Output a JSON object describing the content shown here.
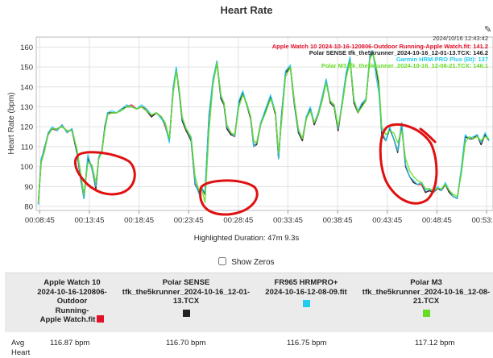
{
  "title": "Heart Rate",
  "timestamp": "2024/10/16 12:43:42",
  "legend": [
    {
      "label": "Apple Watch 10 2024-10-16-120806-Outdoor Running-Apple Watch.fit: 141.2",
      "color": "#e5102a"
    },
    {
      "label": "Polar SENSE tfk_the5krunner_2024-10-16_12-01-13.TCX: 146.2",
      "color": "#222222"
    },
    {
      "label": "Garmin HRM-PRO Plus (Bt): 137",
      "color": "#22ccee"
    },
    {
      "label": "Polar M3 tfk_the5krunner_2024-10-16_12-08-21.TCX: 146.1",
      "color": "#66dd22"
    }
  ],
  "highlighted_duration": "Highlighted Duration: 47m 9.3s",
  "show_zeros_label": "Show Zeros",
  "table": {
    "columns": [
      {
        "lines": [
          "Apple Watch 10",
          "2024-10-16-120806-",
          "Outdoor",
          "Running-",
          "Apple Watch.fit"
        ],
        "color": "#e5102a"
      },
      {
        "lines": [
          "Polar SENSE",
          "tfk_the5krunner_2024-10-16_12-01-13.TCX"
        ],
        "color": "#222222"
      },
      {
        "lines": [
          "FR965 HRMPRO+",
          "2024-10-16-12-08-09.fit"
        ],
        "color": "#22ccee"
      },
      {
        "lines": [
          "Polar M3",
          "tfk_the5krunner_2024-10-16_12-08-21.TCX"
        ],
        "color": "#66dd22"
      }
    ],
    "row_label": "Avg Heart",
    "avg": [
      "116.87 bpm",
      "116.70 bpm",
      "116.75 bpm",
      "117.12 bpm"
    ]
  },
  "chart_data": {
    "type": "line",
    "ylabel": "Heart Rate (bpm)",
    "ylim": [
      78,
      165
    ],
    "y_ticks": [
      80,
      90,
      100,
      110,
      120,
      130,
      140,
      150,
      160
    ],
    "x_ticks": [
      "00:08:45",
      "00:13:45",
      "00:18:45",
      "00:23:45",
      "00:28:45",
      "00:33:45",
      "00:38:45",
      "00:43:45",
      "00:48:45",
      "00:53:45"
    ],
    "x_tick_minutes": [
      8.75,
      13.75,
      18.75,
      23.75,
      28.75,
      33.75,
      38.75,
      43.75,
      48.75,
      53.75
    ],
    "xlim_minutes": [
      8.4,
      54.4
    ],
    "grid": true,
    "legend_position": "top-right",
    "x_minutes": [
      8.6,
      8.9,
      9.2,
      9.6,
      10.0,
      10.5,
      11.0,
      11.5,
      12.0,
      12.5,
      12.9,
      13.2,
      13.6,
      14.0,
      14.4,
      14.7,
      15.0,
      15.3,
      15.6,
      16.0,
      16.5,
      17.0,
      17.5,
      18.0,
      18.5,
      19.0,
      19.5,
      20.0,
      20.5,
      21.0,
      21.4,
      21.8,
      22.2,
      22.5,
      22.8,
      23.1,
      23.5,
      24.0,
      24.4,
      24.8,
      25.1,
      25.4,
      25.8,
      26.2,
      26.6,
      27.0,
      27.3,
      27.6,
      28.0,
      28.4,
      28.8,
      29.2,
      29.6,
      30.0,
      30.3,
      30.6,
      31.0,
      31.5,
      32.0,
      32.5,
      32.8,
      33.1,
      33.5,
      34.0,
      34.4,
      34.8,
      35.2,
      35.6,
      36.0,
      36.4,
      36.8,
      37.2,
      37.6,
      38.0,
      38.4,
      38.8,
      39.2,
      39.6,
      40.0,
      40.4,
      40.8,
      41.2,
      41.6,
      42.0,
      42.3,
      42.6,
      42.9,
      43.2,
      43.6,
      44.0,
      44.4,
      44.8,
      45.2,
      45.6,
      46.0,
      46.4,
      46.8,
      47.2,
      47.6,
      48.0,
      48.4,
      48.8,
      49.2,
      49.6,
      50.0,
      50.4,
      50.8,
      51.2,
      51.6,
      52.0,
      52.4,
      52.8,
      53.2,
      53.6,
      54.0
    ],
    "series": [
      {
        "name": "Apple Watch 10 2024-10-16-120806-Outdoor Running-Apple Watch.fit",
        "color": "#e5102a",
        "values": [
          82,
          104,
          108,
          117,
          119,
          118,
          121,
          117,
          119,
          107,
          93,
          85,
          105,
          99,
          89,
          105,
          108,
          119,
          127,
          127,
          127,
          129,
          130,
          131,
          129,
          130,
          129,
          125,
          127,
          125,
          120,
          113,
          140,
          149,
          138,
          123,
          118,
          114,
          92,
          87,
          89,
          87,
          125,
          143,
          153,
          134,
          132,
          119,
          116,
          115,
          132,
          137,
          131,
          124,
          110,
          111,
          122,
          128,
          135,
          126,
          104,
          125,
          147,
          150,
          131,
          118,
          113,
          124,
          129,
          121,
          127,
          135,
          143,
          133,
          131,
          118,
          132,
          146,
          154,
          132,
          127,
          131,
          133,
          155,
          157,
          150,
          141,
          117,
          113,
          119,
          114,
          108,
          122,
          100,
          95,
          92,
          91,
          91,
          87,
          88,
          87,
          89,
          88,
          91,
          87,
          85,
          84,
          98,
          115,
          114,
          114,
          116,
          111,
          116,
          113
        ]
      },
      {
        "name": "Polar SENSE tfk_the5krunner_2024-10-16_12-01-13.TCX",
        "color": "#222222",
        "values": [
          81,
          103,
          109,
          116,
          119,
          119,
          120,
          118,
          118,
          107,
          93,
          84,
          104,
          100,
          89,
          105,
          107,
          120,
          127,
          127,
          127,
          129,
          130,
          130,
          129,
          130,
          128,
          125,
          127,
          125,
          121,
          113,
          139,
          149,
          137,
          123,
          118,
          113,
          91,
          87,
          89,
          86,
          126,
          143,
          152,
          134,
          131,
          119,
          116,
          116,
          132,
          137,
          131,
          124,
          111,
          111,
          121,
          128,
          135,
          126,
          104,
          126,
          147,
          150,
          131,
          117,
          113,
          125,
          129,
          121,
          126,
          134,
          143,
          132,
          130,
          118,
          131,
          146,
          154,
          132,
          127,
          131,
          133,
          155,
          157,
          150,
          141,
          116,
          113,
          119,
          114,
          107,
          121,
          100,
          95,
          92,
          91,
          92,
          87,
          88,
          87,
          89,
          88,
          91,
          87,
          85,
          84,
          98,
          115,
          114,
          114,
          116,
          111,
          116,
          113
        ]
      },
      {
        "name": "Garmin HRM-PRO Plus (Bt)",
        "color": "#22ccee",
        "values": [
          81,
          104,
          108,
          117,
          120,
          118,
          121,
          117,
          119,
          108,
          94,
          84,
          106,
          99,
          90,
          105,
          108,
          119,
          127,
          128,
          127,
          129,
          131,
          130,
          129,
          131,
          129,
          126,
          127,
          124,
          121,
          112,
          140,
          150,
          138,
          124,
          119,
          114,
          92,
          86,
          89,
          87,
          126,
          144,
          153,
          135,
          132,
          120,
          117,
          115,
          133,
          138,
          131,
          125,
          110,
          112,
          122,
          129,
          136,
          127,
          104,
          125,
          148,
          151,
          132,
          118,
          114,
          125,
          130,
          122,
          127,
          135,
          144,
          133,
          131,
          119,
          132,
          147,
          155,
          133,
          128,
          132,
          134,
          156,
          158,
          146,
          137,
          118,
          113,
          120,
          114,
          108,
          122,
          101,
          95,
          93,
          91,
          92,
          88,
          89,
          87,
          90,
          88,
          92,
          88,
          85,
          84,
          99,
          116,
          114,
          115,
          116,
          112,
          117,
          113
        ]
      },
      {
        "name": "Polar M3 tfk_the5krunner_2024-10-16_12-08-21.TCX",
        "color": "#66dd22",
        "values": [
          82,
          102,
          107,
          116,
          119,
          119,
          120,
          118,
          118,
          109,
          96,
          86,
          102,
          101,
          92,
          104,
          107,
          118,
          126,
          127,
          127,
          128,
          130,
          130,
          129,
          130,
          128,
          126,
          127,
          125,
          122,
          114,
          137,
          148,
          139,
          125,
          119,
          115,
          95,
          88,
          88,
          82,
          118,
          141,
          152,
          136,
          132,
          121,
          117,
          116,
          130,
          136,
          132,
          125,
          113,
          112,
          121,
          127,
          134,
          127,
          107,
          122,
          145,
          150,
          133,
          119,
          114,
          124,
          128,
          122,
          126,
          133,
          142,
          133,
          131,
          120,
          130,
          144,
          153,
          134,
          127,
          130,
          133,
          154,
          157,
          151,
          143,
          120,
          116,
          118,
          117,
          112,
          118,
          104,
          98,
          95,
          93,
          92,
          89,
          89,
          88,
          89,
          89,
          91,
          88,
          86,
          85,
          96,
          112,
          115,
          114,
          115,
          113,
          115,
          114
        ]
      }
    ]
  }
}
